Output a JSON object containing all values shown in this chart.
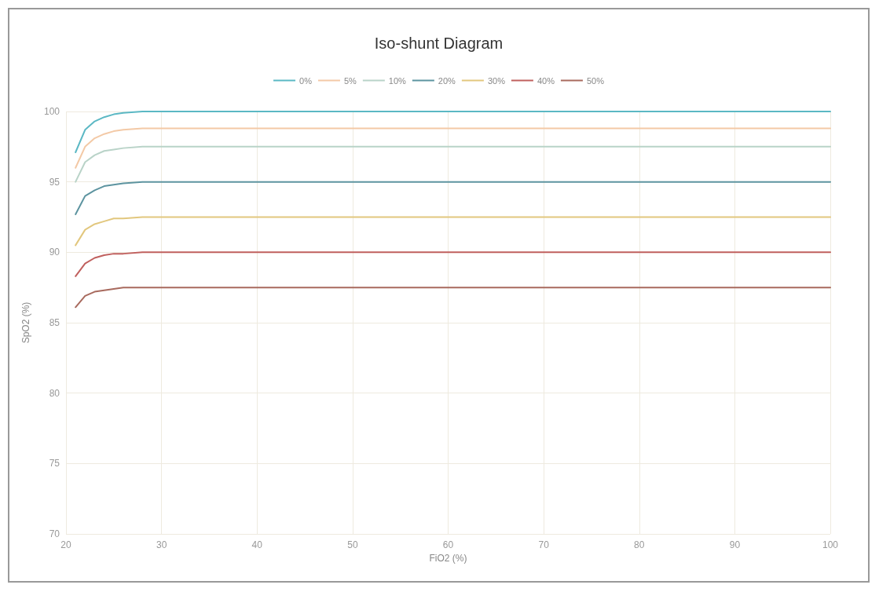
{
  "chart_data": {
    "type": "line",
    "title": "Iso-shunt Diagram",
    "xlabel": "FiO2 (%)",
    "ylabel": "SpO2 (%)",
    "x": [
      21,
      22,
      23,
      24,
      25,
      26,
      28,
      30,
      40,
      50,
      60,
      70,
      80,
      90,
      100
    ],
    "series": [
      {
        "name": "0%",
        "color": "#5bb8c4",
        "values": [
          97.1,
          98.7,
          99.3,
          99.6,
          99.8,
          99.9,
          100,
          100,
          100,
          100,
          100,
          100,
          100,
          100,
          100
        ]
      },
      {
        "name": "5%",
        "color": "#f3c9a6",
        "values": [
          96,
          97.5,
          98.1,
          98.4,
          98.6,
          98.7,
          98.8,
          98.8,
          98.8,
          98.8,
          98.8,
          98.8,
          98.8,
          98.8,
          98.8
        ]
      },
      {
        "name": "10%",
        "color": "#b9d3c8",
        "values": [
          95,
          96.4,
          96.9,
          97.2,
          97.3,
          97.4,
          97.5,
          97.5,
          97.5,
          97.5,
          97.5,
          97.5,
          97.5,
          97.5,
          97.5
        ]
      },
      {
        "name": "20%",
        "color": "#5d94a0",
        "values": [
          92.7,
          94,
          94.4,
          94.7,
          94.8,
          94.9,
          95,
          95,
          95,
          95,
          95,
          95,
          95,
          95,
          95
        ]
      },
      {
        "name": "30%",
        "color": "#e2c77e",
        "values": [
          90.5,
          91.6,
          92,
          92.2,
          92.4,
          92.4,
          92.5,
          92.5,
          92.5,
          92.5,
          92.5,
          92.5,
          92.5,
          92.5,
          92.5
        ]
      },
      {
        "name": "40%",
        "color": "#c0605e",
        "values": [
          88.3,
          89.2,
          89.6,
          89.8,
          89.9,
          89.9,
          90,
          90,
          90,
          90,
          90,
          90,
          90,
          90,
          90
        ]
      },
      {
        "name": "50%",
        "color": "#a86a5e",
        "values": [
          86.1,
          86.9,
          87.2,
          87.3,
          87.4,
          87.5,
          87.5,
          87.5,
          87.5,
          87.5,
          87.5,
          87.5,
          87.5,
          87.5,
          87.5
        ]
      }
    ],
    "xlim": [
      20,
      100
    ],
    "xticks": [
      20,
      30,
      40,
      50,
      60,
      70,
      80,
      90,
      100
    ],
    "ylim": [
      70,
      100
    ],
    "yticks": [
      70,
      75,
      80,
      85,
      90,
      95,
      100
    ],
    "grid": true,
    "legend": "top",
    "marker": "none",
    "line_style": "solid"
  }
}
